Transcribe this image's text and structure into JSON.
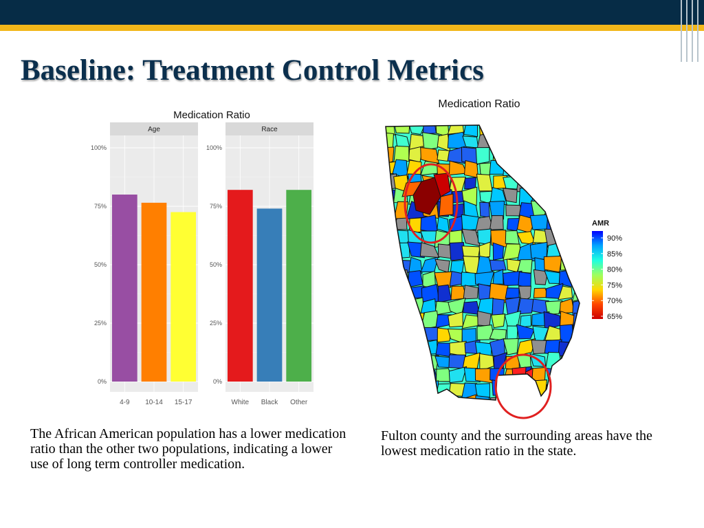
{
  "slide": {
    "title": "Baseline: Treatment Control Metrics",
    "caption_left": "The African American population has a lower medication ratio than the other two populations, indicating a lower use of long term controller medication.",
    "caption_right": "Fulton county and the surrounding areas have the lowest medication ratio in the state."
  },
  "chart_data": [
    {
      "type": "bar",
      "title": "Medication Ratio",
      "ylim": [
        0,
        1
      ],
      "y_ticks": [
        "0%",
        "25%",
        "50%",
        "75%",
        "100%"
      ],
      "panels": [
        {
          "name": "Age",
          "categories": [
            "4-9",
            "10-14",
            "15-17"
          ],
          "values": [
            0.8,
            0.765,
            0.725
          ],
          "colors": [
            "#984ea3",
            "#ff7f00",
            "#ffff33"
          ]
        },
        {
          "name": "Race",
          "categories": [
            "White",
            "Black",
            "Other"
          ],
          "values": [
            0.82,
            0.74,
            0.82
          ],
          "colors": [
            "#e41a1c",
            "#377eb8",
            "#4daf4a"
          ]
        }
      ]
    },
    {
      "type": "heatmap",
      "title": "Medication Ratio",
      "legend": {
        "title": "AMR",
        "labels": [
          "90%",
          "85%",
          "80%",
          "75%",
          "70%",
          "65%"
        ],
        "colors": [
          "#0000ff",
          "#00a5ff",
          "#1effe0",
          "#9eff5e",
          "#ffd700",
          "#ff4500",
          "#cc0000"
        ]
      },
      "highlight_colors": [
        "#8b0000",
        "#cc0000",
        "#ff2020",
        "#ff6600"
      ],
      "map_colors": [
        "#0050ff",
        "#2060f0",
        "#00a0ff",
        "#00c8ff",
        "#20e0f0",
        "#40ffd0",
        "#80ff80",
        "#b0ff50",
        "#e0f040",
        "#ffd700",
        "#ffa000",
        "#1030d0",
        "#909090"
      ]
    }
  ]
}
